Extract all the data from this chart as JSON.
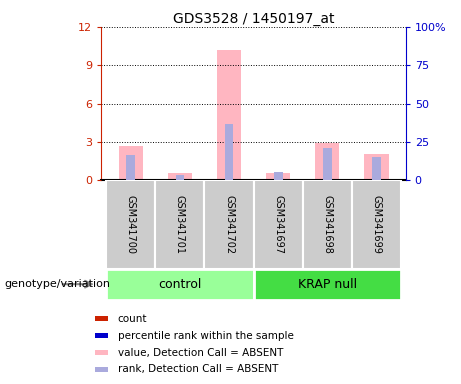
{
  "title": "GDS3528 / 1450197_at",
  "samples": [
    "GSM341700",
    "GSM341701",
    "GSM341702",
    "GSM341697",
    "GSM341698",
    "GSM341699"
  ],
  "pink_bars": [
    2.7,
    0.55,
    10.2,
    0.55,
    2.9,
    2.1
  ],
  "blue_bars": [
    2.0,
    0.45,
    4.4,
    0.7,
    2.5,
    1.8
  ],
  "left_ylim": [
    0,
    12
  ],
  "right_ylim": [
    0,
    100
  ],
  "left_yticks": [
    0,
    3,
    6,
    9,
    12
  ],
  "right_yticks": [
    0,
    25,
    50,
    75,
    100
  ],
  "right_yticklabels": [
    "0",
    "25",
    "50",
    "75",
    "100%"
  ],
  "pink_color": "#FFB6C1",
  "blue_color": "#AAAADD",
  "left_tick_color": "#CC2200",
  "right_tick_color": "#0000CC",
  "sample_box_color": "#CCCCCC",
  "group_ctrl_color": "#99FF99",
  "group_krap_color": "#44DD44",
  "bg_color": "#FFFFFF",
  "legend_items": [
    {
      "label": "count",
      "color": "#CC2200"
    },
    {
      "label": "percentile rank within the sample",
      "color": "#0000CC"
    },
    {
      "label": "value, Detection Call = ABSENT",
      "color": "#FFB6C1"
    },
    {
      "label": "rank, Detection Call = ABSENT",
      "color": "#AAAADD"
    }
  ],
  "genotype_label": "genotype/variation"
}
